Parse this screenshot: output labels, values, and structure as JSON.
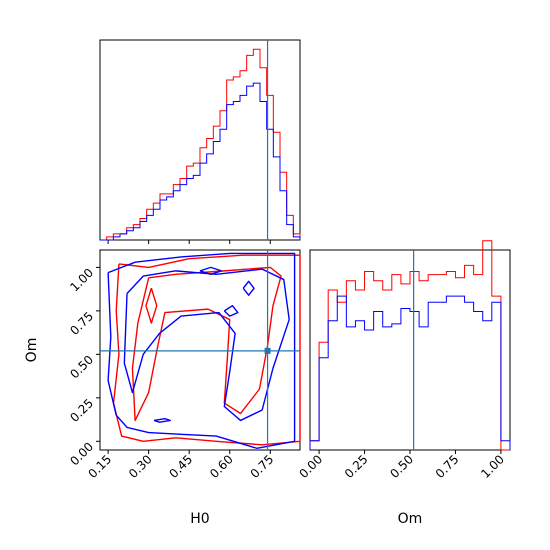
{
  "colors": {
    "series_red": "#ff0000",
    "series_blue": "#0000ff",
    "truth": "#1f77b4"
  },
  "chart_data": [
    {
      "type": "histogram",
      "panel": "H0 marginal",
      "xlim": [
        0.12,
        0.86
      ],
      "ylim": [
        0,
        65
      ],
      "bins": [
        0.12,
        0.1447,
        0.1693,
        0.194,
        0.2187,
        0.2433,
        0.268,
        0.2927,
        0.3173,
        0.342,
        0.3667,
        0.3913,
        0.416,
        0.4407,
        0.4653,
        0.49,
        0.5147,
        0.5393,
        0.564,
        0.5887,
        0.6133,
        0.638,
        0.6627,
        0.6873,
        0.712,
        0.7367,
        0.7613,
        0.786,
        0.8107,
        0.8353,
        0.86
      ],
      "series": [
        {
          "name": "red",
          "color": "#ff0000",
          "counts": [
            0,
            1,
            2,
            2,
            4,
            5,
            7,
            10,
            12,
            15,
            15,
            18,
            20,
            24,
            25,
            30,
            33,
            37,
            42,
            52,
            53,
            55,
            60,
            62,
            56,
            47,
            35,
            22,
            8,
            2
          ]
        },
        {
          "name": "blue",
          "color": "#0000ff",
          "counts": [
            0,
            0,
            1,
            2,
            3,
            4,
            6,
            8,
            10,
            13,
            14,
            16,
            18,
            20,
            21,
            25,
            28,
            32,
            36,
            44,
            45,
            47,
            50,
            51,
            45,
            36,
            27,
            16,
            5,
            1
          ]
        }
      ],
      "truth_x": 0.74,
      "grid": false
    },
    {
      "type": "histogram",
      "panel": "Om marginal",
      "xlim": [
        -0.05,
        1.05
      ],
      "ylim": [
        0,
        65
      ],
      "bins": [
        -0.05,
        0,
        0.05,
        0.1,
        0.15,
        0.2,
        0.25,
        0.3,
        0.35,
        0.4,
        0.45,
        0.5,
        0.55,
        0.6,
        0.65,
        0.7,
        0.75,
        0.8,
        0.85,
        0.9,
        0.95,
        1.0,
        1.05
      ],
      "series": [
        {
          "name": "red",
          "color": "#ff0000",
          "counts": [
            3,
            35,
            52,
            48,
            55,
            52,
            58,
            55,
            52,
            57,
            54,
            58,
            55,
            57,
            57,
            58,
            56,
            60,
            57,
            68,
            50,
            0
          ]
        },
        {
          "name": "blue",
          "color": "#0000ff",
          "counts": [
            3,
            30,
            42,
            50,
            40,
            42,
            39,
            45,
            40,
            41,
            46,
            45,
            40,
            48,
            48,
            50,
            50,
            48,
            45,
            42,
            48,
            3
          ]
        }
      ],
      "truth_x": 0.52,
      "grid": false
    },
    {
      "type": "contour",
      "panel": "Om vs H0 joint",
      "xlim": [
        0.12,
        0.86
      ],
      "ylim": [
        -0.05,
        1.1
      ],
      "series": [
        {
          "name": "red",
          "color": "#ff0000",
          "contours": [
            [
              [
                0.19,
                1.02
              ],
              [
                0.3,
                1.0
              ],
              [
                0.45,
                1.05
              ],
              [
                0.65,
                1.07
              ],
              [
                0.86,
                1.07
              ],
              [
                0.86,
                0.0
              ],
              [
                0.72,
                -0.02
              ],
              [
                0.55,
                0.0
              ],
              [
                0.4,
                0.02
              ],
              [
                0.28,
                0.0
              ],
              [
                0.2,
                0.03
              ],
              [
                0.17,
                0.22
              ],
              [
                0.19,
                0.5
              ],
              [
                0.18,
                0.75
              ],
              [
                0.19,
                1.02
              ]
            ],
            [
              [
                0.3,
                0.94
              ],
              [
                0.4,
                0.96
              ],
              [
                0.58,
                0.98
              ],
              [
                0.75,
                1.0
              ],
              [
                0.79,
                0.95
              ],
              [
                0.76,
                0.78
              ],
              [
                0.74,
                0.55
              ],
              [
                0.71,
                0.3
              ],
              [
                0.64,
                0.16
              ],
              [
                0.58,
                0.22
              ],
              [
                0.59,
                0.45
              ],
              [
                0.6,
                0.7
              ],
              [
                0.52,
                0.76
              ],
              [
                0.36,
                0.74
              ],
              [
                0.33,
                0.52
              ],
              [
                0.3,
                0.28
              ],
              [
                0.25,
                0.12
              ],
              [
                0.24,
                0.42
              ],
              [
                0.26,
                0.68
              ],
              [
                0.3,
                0.94
              ]
            ],
            [
              [
                0.31,
                0.88
              ],
              [
                0.33,
                0.78
              ],
              [
                0.31,
                0.68
              ],
              [
                0.29,
                0.78
              ],
              [
                0.31,
                0.88
              ]
            ]
          ]
        },
        {
          "name": "blue",
          "color": "#0000ff",
          "contours": [
            [
              [
                0.15,
                0.97
              ],
              [
                0.25,
                1.03
              ],
              [
                0.42,
                1.06
              ],
              [
                0.6,
                1.08
              ],
              [
                0.84,
                1.08
              ],
              [
                0.84,
                0.0
              ],
              [
                0.7,
                -0.04
              ],
              [
                0.55,
                0.03
              ],
              [
                0.42,
                0.04
              ],
              [
                0.3,
                0.05
              ],
              [
                0.22,
                0.08
              ],
              [
                0.18,
                0.15
              ],
              [
                0.15,
                0.35
              ],
              [
                0.16,
                0.6
              ],
              [
                0.15,
                0.97
              ]
            ],
            [
              [
                0.22,
                0.85
              ],
              [
                0.28,
                0.95
              ],
              [
                0.4,
                0.98
              ],
              [
                0.55,
                0.96
              ],
              [
                0.72,
                0.99
              ],
              [
                0.8,
                0.93
              ],
              [
                0.82,
                0.7
              ],
              [
                0.76,
                0.42
              ],
              [
                0.72,
                0.18
              ],
              [
                0.64,
                0.12
              ],
              [
                0.58,
                0.2
              ],
              [
                0.6,
                0.4
              ],
              [
                0.62,
                0.62
              ],
              [
                0.56,
                0.74
              ],
              [
                0.42,
                0.72
              ],
              [
                0.34,
                0.62
              ],
              [
                0.28,
                0.5
              ],
              [
                0.24,
                0.28
              ],
              [
                0.21,
                0.45
              ],
              [
                0.22,
                0.85
              ]
            ],
            [
              [
                0.49,
                0.98
              ],
              [
                0.53,
                1.0
              ],
              [
                0.57,
                0.98
              ],
              [
                0.53,
                0.96
              ],
              [
                0.49,
                0.98
              ]
            ],
            [
              [
                0.58,
                0.75
              ],
              [
                0.61,
                0.78
              ],
              [
                0.63,
                0.74
              ],
              [
                0.6,
                0.72
              ],
              [
                0.58,
                0.75
              ]
            ],
            [
              [
                0.65,
                0.88
              ],
              [
                0.67,
                0.92
              ],
              [
                0.69,
                0.88
              ],
              [
                0.67,
                0.84
              ],
              [
                0.65,
                0.88
              ]
            ],
            [
              [
                0.32,
                0.12
              ],
              [
                0.36,
                0.13
              ],
              [
                0.38,
                0.12
              ],
              [
                0.34,
                0.11
              ],
              [
                0.32,
                0.12
              ]
            ]
          ]
        }
      ],
      "truth": {
        "x": 0.74,
        "y": 0.52
      },
      "grid": false
    }
  ],
  "axes": {
    "x_ticks_h0": [
      "0.15",
      "0.30",
      "0.45",
      "0.60",
      "0.75"
    ],
    "x_ticks_om": [
      "0.00",
      "0.25",
      "0.50",
      "0.75",
      "1.00"
    ],
    "y_ticks_om": [
      "0.00",
      "0.25",
      "0.50",
      "0.75",
      "1.00"
    ],
    "xlabel_left": "H0",
    "xlabel_right": "Om",
    "ylabel_joint": "Om"
  }
}
